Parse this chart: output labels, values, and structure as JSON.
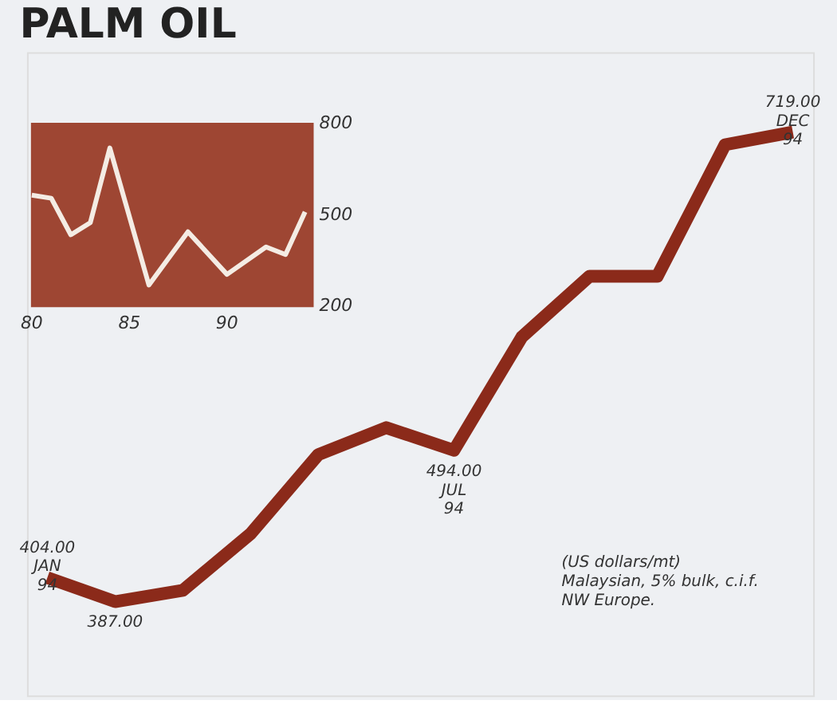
{
  "chart_data": [
    {
      "type": "line",
      "title": "PALM OIL",
      "categories": [
        "JAN 94",
        null,
        null,
        null,
        null,
        null,
        "JUL 94",
        null,
        null,
        null,
        null,
        "DEC 94"
      ],
      "series": [
        {
          "color": "#8b2a1a",
          "values": [
            404,
            387,
            395,
            435,
            491,
            510,
            494,
            574,
            617,
            617,
            710,
            719
          ],
          "value_labels": [
            "404.00",
            "387.00",
            null,
            null,
            null,
            null,
            "494.00",
            null,
            null,
            null,
            null,
            "719.00"
          ]
        }
      ],
      "annotations": [
        "(US dollars/mt)",
        "Malaysian, 5% bulk, c.i.f.",
        "NW Europe."
      ]
    },
    {
      "type": "line",
      "x": [
        1980,
        1981,
        1982,
        1983,
        1984,
        1986,
        1988,
        1990,
        1992,
        1993,
        1994
      ],
      "series": [
        {
          "color": "#f4ece4",
          "values": [
            565,
            555,
            435,
            475,
            720,
            270,
            445,
            305,
            395,
            370,
            510
          ]
        }
      ],
      "xlim": [
        1980,
        1994.4
      ],
      "ylim": [
        200,
        800
      ],
      "xticks": [
        {
          "value": 1980,
          "label": "80"
        },
        {
          "value": 1985,
          "label": "85"
        },
        {
          "value": 1990,
          "label": "90"
        }
      ],
      "yticks": [
        200,
        500,
        800
      ]
    }
  ]
}
